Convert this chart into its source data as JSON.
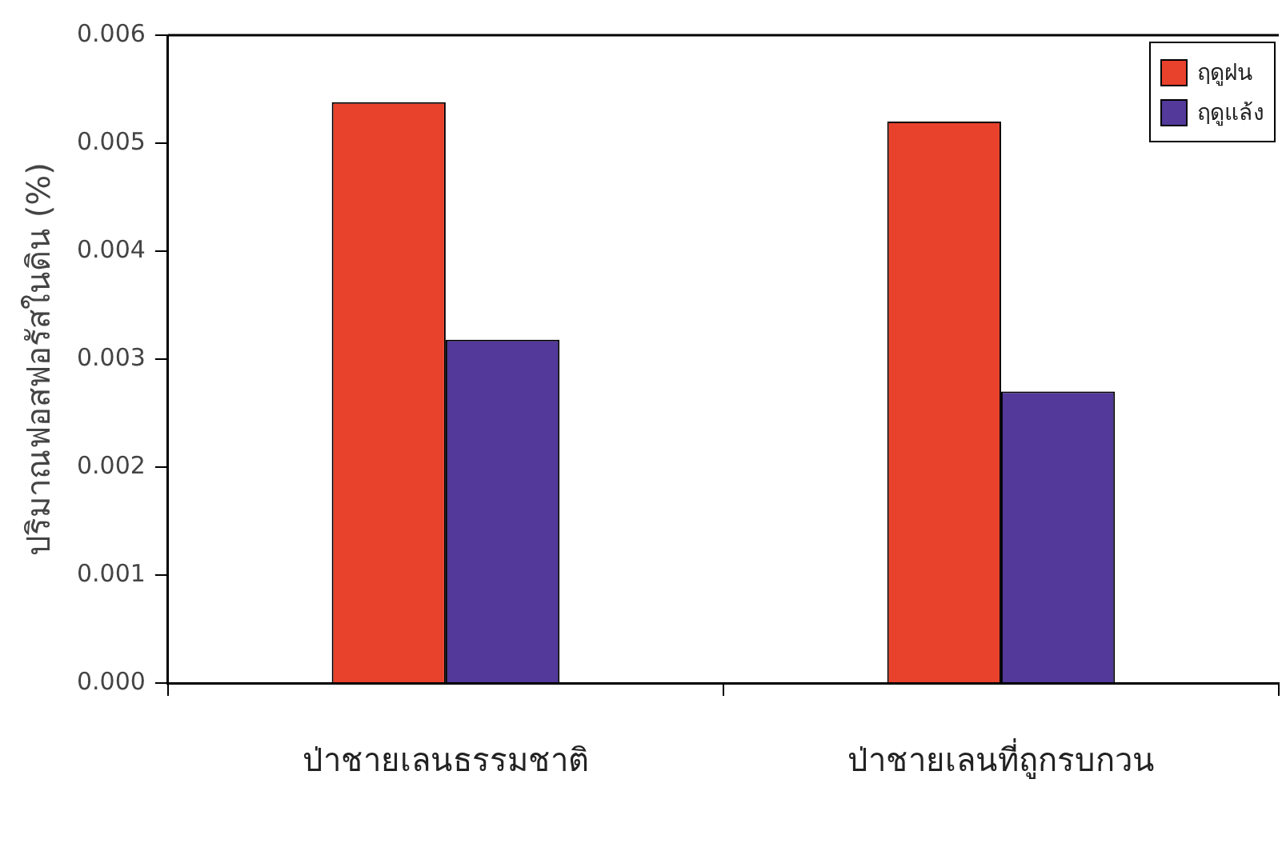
{
  "chart_data": {
    "type": "bar",
    "ylabel": "ปริมาณฟอสฟอรัสในดิน (%)",
    "categories": [
      "ป่าชายเลนธรรมชาติ",
      "ป่าชายเลนที่ถูกรบกวน"
    ],
    "series": [
      {
        "name": "ฤดูฝน",
        "color": "#e8412c",
        "values": [
          0.00538,
          0.0052
        ]
      },
      {
        "name": "ฤดูแล้ง",
        "color": "#52399a",
        "values": [
          0.00318,
          0.0027
        ]
      }
    ],
    "ylim": [
      0,
      0.006
    ],
    "yticks": [
      {
        "value": 0,
        "label": "0.000"
      },
      {
        "value": 0.001,
        "label": "0.001"
      },
      {
        "value": 0.002,
        "label": "0.002"
      },
      {
        "value": 0.003,
        "label": "0.003"
      },
      {
        "value": 0.004,
        "label": "0.004"
      },
      {
        "value": 0.005,
        "label": "0.005"
      },
      {
        "value": 0.006,
        "label": "0.006"
      }
    ],
    "legend": "top right",
    "grid": false
  }
}
